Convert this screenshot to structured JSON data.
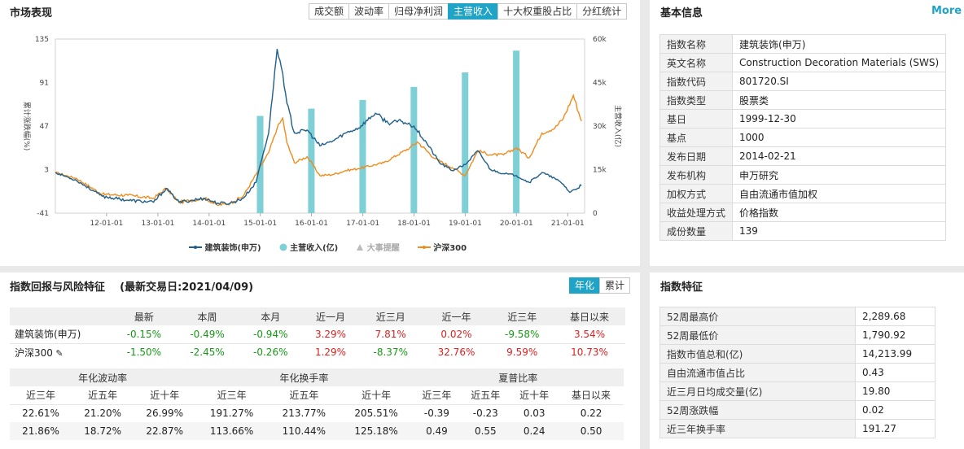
{
  "market": {
    "title": "市场表现",
    "tabs": [
      "成交额",
      "波动率",
      "归母净利润",
      "主营收入",
      "十大权重股占比",
      "分红统计"
    ],
    "active_tab": 3
  },
  "chart_data": {
    "type": "line",
    "x_tick_labels": [
      "12-01-01",
      "13-01-01",
      "14-01-01",
      "15-01-01",
      "16-01-01",
      "17-01-01",
      "18-01-01",
      "19-01-01",
      "20-01-01",
      "21-01-01"
    ],
    "y_left": {
      "label": "累计涨跌幅(%)",
      "ticks": [
        "135",
        "91",
        "47",
        "3",
        "-41"
      ],
      "range": [
        -41,
        135
      ]
    },
    "y_right": {
      "label": "主营收入(亿)",
      "ticks": [
        "60k",
        "45k",
        "30k",
        "15k",
        "0"
      ],
      "range": [
        0,
        60000
      ]
    },
    "legend": [
      "建筑装饰(申万)",
      "主营收入(亿)",
      "大事提醒",
      "沪深300"
    ],
    "colors": {
      "index": "#1f5f8b",
      "revenue": "#7ecfd6",
      "hs300": "#f08c1e"
    },
    "revenue_bars": [
      {
        "x": "2014-12-31",
        "value": 33500
      },
      {
        "x": "2015-12-31",
        "value": 36000
      },
      {
        "x": "2016-12-31",
        "value": 39000
      },
      {
        "x": "2017-12-31",
        "value": 43500
      },
      {
        "x": "2018-12-31",
        "value": 48500
      },
      {
        "x": "2019-12-31",
        "value": 56000
      }
    ],
    "index_series": [
      [
        "2011-01-01",
        0
      ],
      [
        "2011-06-01",
        -8
      ],
      [
        "2011-12-01",
        -24
      ],
      [
        "2012-06-01",
        -28
      ],
      [
        "2012-12-01",
        -30
      ],
      [
        "2013-03-01",
        -16
      ],
      [
        "2013-06-01",
        -30
      ],
      [
        "2013-12-01",
        -26
      ],
      [
        "2014-03-01",
        -31
      ],
      [
        "2014-06-01",
        -31
      ],
      [
        "2014-09-01",
        -26
      ],
      [
        "2014-12-01",
        -10
      ],
      [
        "2015-01-01",
        8
      ],
      [
        "2015-03-01",
        40
      ],
      [
        "2015-05-01",
        125
      ],
      [
        "2015-06-10",
        100
      ],
      [
        "2015-07-10",
        70
      ],
      [
        "2015-09-01",
        40
      ],
      [
        "2015-12-01",
        43
      ],
      [
        "2016-03-01",
        27
      ],
      [
        "2016-06-01",
        32
      ],
      [
        "2016-09-01",
        40
      ],
      [
        "2016-12-01",
        45
      ],
      [
        "2017-04-01",
        60
      ],
      [
        "2017-07-01",
        50
      ],
      [
        "2017-10-01",
        52
      ],
      [
        "2018-01-01",
        47
      ],
      [
        "2018-04-01",
        30
      ],
      [
        "2018-07-01",
        10
      ],
      [
        "2018-10-01",
        2
      ],
      [
        "2019-01-01",
        8
      ],
      [
        "2019-04-01",
        22
      ],
      [
        "2019-07-01",
        3
      ],
      [
        "2019-10-01",
        -1
      ],
      [
        "2020-01-01",
        -3
      ],
      [
        "2020-04-01",
        -10
      ],
      [
        "2020-07-01",
        0
      ],
      [
        "2020-10-01",
        -6
      ],
      [
        "2020-12-01",
        -12
      ],
      [
        "2021-01-15",
        -20
      ],
      [
        "2021-04-09",
        -13
      ]
    ],
    "hs300_series": [
      [
        "2011-01-01",
        0
      ],
      [
        "2011-06-01",
        -6
      ],
      [
        "2011-12-01",
        -22
      ],
      [
        "2012-06-01",
        -23
      ],
      [
        "2012-12-01",
        -26
      ],
      [
        "2013-03-01",
        -16
      ],
      [
        "2013-06-01",
        -30
      ],
      [
        "2013-12-01",
        -26
      ],
      [
        "2014-03-01",
        -33
      ],
      [
        "2014-06-01",
        -31
      ],
      [
        "2014-09-01",
        -24
      ],
      [
        "2014-12-01",
        -2
      ],
      [
        "2015-03-01",
        20
      ],
      [
        "2015-05-01",
        45
      ],
      [
        "2015-06-10",
        55
      ],
      [
        "2015-07-10",
        30
      ],
      [
        "2015-09-01",
        10
      ],
      [
        "2015-12-01",
        16
      ],
      [
        "2016-03-01",
        -3
      ],
      [
        "2016-06-01",
        -2
      ],
      [
        "2016-09-01",
        2
      ],
      [
        "2016-12-01",
        4
      ],
      [
        "2017-06-01",
        10
      ],
      [
        "2017-12-01",
        25
      ],
      [
        "2018-01-25",
        31
      ],
      [
        "2018-06-01",
        14
      ],
      [
        "2018-10-01",
        5
      ],
      [
        "2019-01-01",
        -3
      ],
      [
        "2019-04-01",
        22
      ],
      [
        "2019-07-01",
        18
      ],
      [
        "2019-10-01",
        18
      ],
      [
        "2020-01-01",
        25
      ],
      [
        "2020-04-01",
        15
      ],
      [
        "2020-07-01",
        40
      ],
      [
        "2020-10-01",
        45
      ],
      [
        "2020-12-01",
        55
      ],
      [
        "2021-02-10",
        78
      ],
      [
        "2021-04-09",
        52
      ]
    ]
  },
  "basic": {
    "title": "基本信息",
    "more": "More",
    "rows": [
      {
        "k": "指数名称",
        "v": "建筑装饰(申万)"
      },
      {
        "k": "英文名称",
        "v": "Construction Decoration Materials (SWS)"
      },
      {
        "k": "指数代码",
        "v": "801720.SI"
      },
      {
        "k": "指数类型",
        "v": "股票类"
      },
      {
        "k": "基日",
        "v": "1999-12-30"
      },
      {
        "k": "基点",
        "v": "1000"
      },
      {
        "k": "发布日期",
        "v": "2014-02-21"
      },
      {
        "k": "发布机构",
        "v": "申万研究"
      },
      {
        "k": "加权方式",
        "v": "自由流通市值加权"
      },
      {
        "k": "收益处理方式",
        "v": "价格指数"
      },
      {
        "k": "成份数量",
        "v": "139"
      }
    ]
  },
  "returns": {
    "title": "指数回报与风险特征",
    "subtitle": "(最新交易日:2021/04/09)",
    "toggle": [
      "年化",
      "累计"
    ],
    "headers": [
      "最新",
      "本周",
      "本月",
      "近一月",
      "近三月",
      "近一年",
      "近三年",
      "基日以来"
    ],
    "rows": [
      {
        "name": "建筑装饰(申万)",
        "values": [
          "-0.15%",
          "-0.49%",
          "-0.94%",
          "3.29%",
          "7.81%",
          "0.02%",
          "-9.58%",
          "3.54%"
        ]
      },
      {
        "name": "沪深300",
        "values": [
          "-1.50%",
          "-2.45%",
          "-0.26%",
          "1.29%",
          "-8.37%",
          "32.76%",
          "9.59%",
          "10.73%"
        ]
      }
    ],
    "group_headers": [
      "年化波动率",
      "年化换手率",
      "夏普比率"
    ],
    "sub_headers": [
      "近三年",
      "近五年",
      "近十年",
      "近三年",
      "近五年",
      "近十年",
      "近三年",
      "近五年",
      "近十年",
      "基日以来"
    ],
    "risk_rows": [
      [
        "22.61%",
        "21.20%",
        "26.99%",
        "191.27%",
        "213.77%",
        "205.51%",
        "-0.39",
        "-0.23",
        "0.03",
        "0.22"
      ],
      [
        "21.86%",
        "18.72%",
        "22.87%",
        "113.66%",
        "110.44%",
        "125.18%",
        "0.49",
        "0.55",
        "0.24",
        "0.50"
      ]
    ]
  },
  "features": {
    "title": "指数特征",
    "rows": [
      {
        "k": "52周最高价",
        "v": "2,289.68"
      },
      {
        "k": "52周最低价",
        "v": "1,790.92"
      },
      {
        "k": "指数市值总和(亿)",
        "v": "14,213.99"
      },
      {
        "k": "自由流通市值占比",
        "v": "0.43"
      },
      {
        "k": "近三月日均成交量(亿)",
        "v": "19.80"
      },
      {
        "k": "52周涨跌幅",
        "v": "0.02"
      },
      {
        "k": "近三年换手率",
        "v": "191.27"
      }
    ]
  }
}
